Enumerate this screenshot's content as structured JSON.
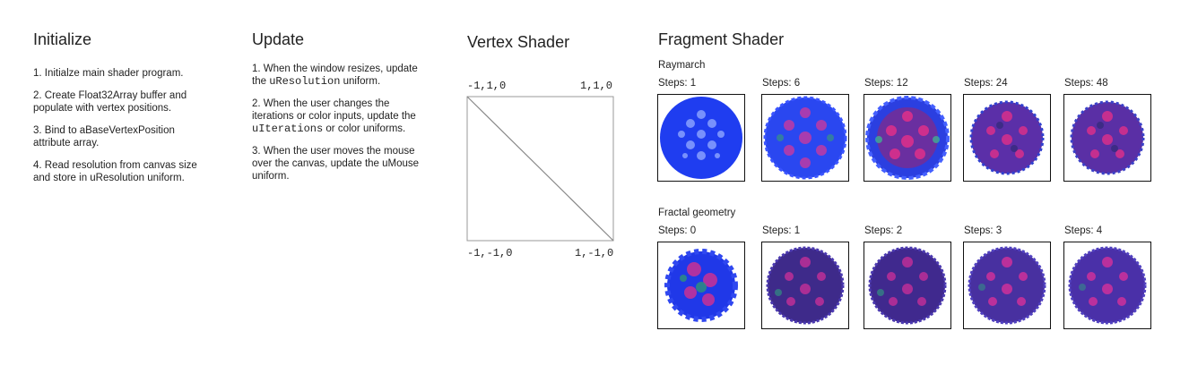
{
  "initialize": {
    "title": "Initialize",
    "steps": [
      "1. Initialze main shader program.",
      "2. Create Float32Array buffer and populate with vertex positions.",
      "3. Bind to aBaseVertexPosition attribute array.",
      "4. Read resolution from canvas size and store in uResolution uniform."
    ]
  },
  "update": {
    "title": "Update",
    "step1_pre": "1. When the window resizes, update the ",
    "step1_code": "uResolution",
    "step1_post": " uniform.",
    "step2_pre": "2. When the user changes the iterations or color inputs, update the ",
    "step2_code": "uIterations",
    "step2_post": " or color uniforms.",
    "step3": "3. When the user moves the mouse over the canvas, update the uMouse uniform."
  },
  "vertex": {
    "title": "Vertex Shader",
    "top_left": "-1,1,0",
    "top_right": "1,1,0",
    "bottom_left": "-1,-1,0",
    "bottom_right": "1,-1,0"
  },
  "fragment": {
    "title": "Fragment Shader",
    "raymarch": {
      "label": "Raymarch",
      "steps": [
        "Steps: 1",
        "Steps: 6",
        "Steps: 12",
        "Steps: 24",
        "Steps: 48"
      ]
    },
    "fractal": {
      "label": "Fractal geometry",
      "steps": [
        "Steps: 0",
        "Steps: 1",
        "Steps: 2",
        "Steps: 3",
        "Steps: 4"
      ]
    }
  },
  "colors": {
    "raymarch_blue": "#1f3df0",
    "fractal_purple": "#5b2fa8",
    "magenta": "#e0308a",
    "frame": "#111111"
  }
}
